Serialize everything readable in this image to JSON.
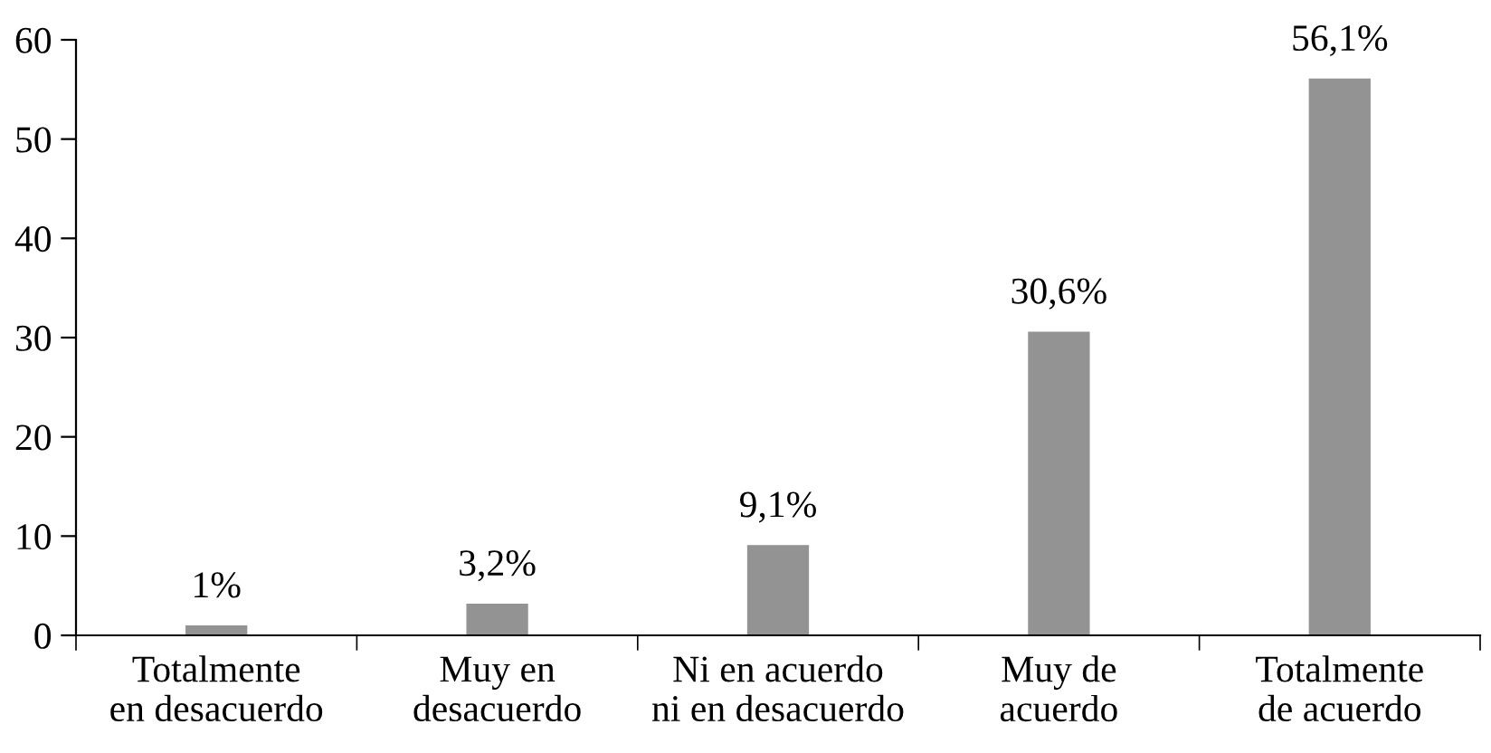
{
  "chart_data": {
    "type": "bar",
    "categories": [
      "Totalmente\nen desacuerdo",
      "Muy en\ndesacuerdo",
      "Ni en acuerdo\nni en desacuerdo",
      "Muy de\nacuerdo",
      "Totalmente\nde acuerdo"
    ],
    "values": [
      1,
      3.2,
      9.1,
      30.6,
      56.1
    ],
    "value_labels": [
      "1%",
      "3,2%",
      "9,1%",
      "30,6%",
      "56,1%"
    ],
    "color": "#939393",
    "ylim": [
      0,
      60
    ],
    "yticks": [
      0,
      10,
      20,
      30,
      40,
      50,
      60
    ],
    "grid": false,
    "legend": false
  }
}
